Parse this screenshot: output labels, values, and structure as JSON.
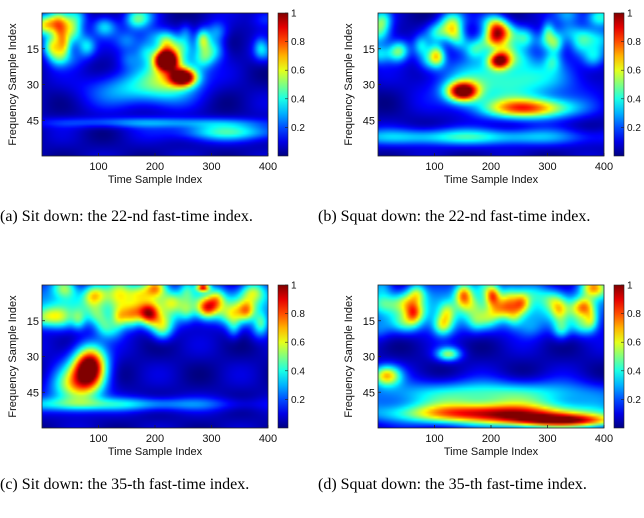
{
  "chart_data": [
    {
      "type": "heatmap",
      "id": "a",
      "xlabel": "Time Sample Index",
      "ylabel": "Frequency Sample Index",
      "xticks": [
        100,
        200,
        300,
        400
      ],
      "yticks": [
        15,
        30,
        45
      ],
      "xlim": [
        0,
        400
      ],
      "ylim": [
        0,
        60
      ],
      "colorbar": {
        "range": [
          0,
          1
        ],
        "ticks": [
          "0.2",
          "0.4",
          "0.6",
          "0.8",
          "1"
        ]
      },
      "colormap": "jet",
      "caption": "(a) Sit down: the 22-nd fast-time index.",
      "blobs": [
        {
          "x": 220,
          "y": 20,
          "sx": 14,
          "sy": 2.8,
          "v": 0.95
        },
        {
          "x": 250,
          "y": 27,
          "sx": 16,
          "sy": 2.5,
          "v": 0.9
        },
        {
          "x": 230,
          "y": 25,
          "sx": 35,
          "sy": 6,
          "v": 0.45
        },
        {
          "x": 170,
          "y": 32,
          "sx": 60,
          "sy": 5,
          "v": 0.3
        },
        {
          "x": 330,
          "y": 50,
          "sx": 70,
          "sy": 2.5,
          "v": 0.35
        },
        {
          "x": 200,
          "y": 46,
          "sx": 140,
          "sy": 1.5,
          "v": 0.22
        }
      ]
    },
    {
      "type": "heatmap",
      "id": "b",
      "xlabel": "Time Sample Index",
      "ylabel": "Frequency Sample Index",
      "xticks": [
        100,
        200,
        300,
        400
      ],
      "yticks": [
        15,
        30,
        45
      ],
      "xlim": [
        0,
        400
      ],
      "ylim": [
        0,
        60
      ],
      "colorbar": {
        "range": [
          0,
          1
        ],
        "ticks": [
          "0.2",
          "0.4",
          "0.6",
          "0.8",
          "1"
        ]
      },
      "colormap": "jet",
      "caption": "(b) Squat down: the 22-nd fast-time index.",
      "blobs": [
        {
          "x": 150,
          "y": 33,
          "sx": 20,
          "sy": 3,
          "v": 0.95
        },
        {
          "x": 265,
          "y": 40,
          "sx": 55,
          "sy": 3,
          "v": 0.72
        },
        {
          "x": 215,
          "y": 20,
          "sx": 14,
          "sy": 2.5,
          "v": 0.8
        },
        {
          "x": 230,
          "y": 28,
          "sx": 80,
          "sy": 7,
          "v": 0.4
        },
        {
          "x": 150,
          "y": 52,
          "sx": 160,
          "sy": 2.5,
          "v": 0.35
        }
      ]
    },
    {
      "type": "heatmap",
      "id": "c",
      "xlabel": "Time Sample Index",
      "ylabel": "Frequency Sample Index",
      "xticks": [
        100,
        200,
        300,
        400
      ],
      "yticks": [
        15,
        30,
        45
      ],
      "xlim": [
        0,
        400
      ],
      "ylim": [
        0,
        60
      ],
      "colorbar": {
        "range": [
          0,
          1
        ],
        "ticks": [
          "0.2",
          "0.4",
          "0.6",
          "0.8",
          "1"
        ]
      },
      "colormap": "jet",
      "caption": "(c) Sit down: the 35-th fast-time index.",
      "blobs": [
        {
          "x": 85,
          "y": 34,
          "sx": 20,
          "sy": 6,
          "v": 0.98
        },
        {
          "x": 60,
          "y": 42,
          "sx": 30,
          "sy": 6,
          "v": 0.55
        },
        {
          "x": 200,
          "y": 8,
          "sx": 200,
          "sy": 5,
          "v": 0.35
        },
        {
          "x": 120,
          "y": 50,
          "sx": 150,
          "sy": 2,
          "v": 0.3
        },
        {
          "x": 285,
          "y": 1,
          "sx": 8,
          "sy": 1.2,
          "v": 0.7
        }
      ]
    },
    {
      "type": "heatmap",
      "id": "d",
      "xlabel": "Time Sample Index",
      "ylabel": "Frequency Sample Index",
      "xticks": [
        100,
        200,
        300,
        400
      ],
      "yticks": [
        15,
        30,
        45
      ],
      "xlim": [
        0,
        400
      ],
      "ylim": [
        0,
        60
      ],
      "colorbar": {
        "range": [
          0,
          1
        ],
        "ticks": [
          "0.2",
          "0.4",
          "0.6",
          "0.8",
          "1"
        ]
      },
      "colormap": "jet",
      "caption": "(d) Squat down: the 35-th fast-time index.",
      "blobs": [
        {
          "x": 200,
          "y": 54,
          "sx": 120,
          "sy": 3,
          "v": 0.85
        },
        {
          "x": 330,
          "y": 57,
          "sx": 70,
          "sy": 2,
          "v": 0.75
        },
        {
          "x": 15,
          "y": 38,
          "sx": 18,
          "sy": 3,
          "v": 0.6
        },
        {
          "x": 125,
          "y": 29,
          "sx": 15,
          "sy": 2,
          "v": 0.45
        },
        {
          "x": 200,
          "y": 46,
          "sx": 150,
          "sy": 4,
          "v": 0.4
        },
        {
          "x": 200,
          "y": 10,
          "sx": 200,
          "sy": 6,
          "v": 0.3
        }
      ]
    }
  ]
}
